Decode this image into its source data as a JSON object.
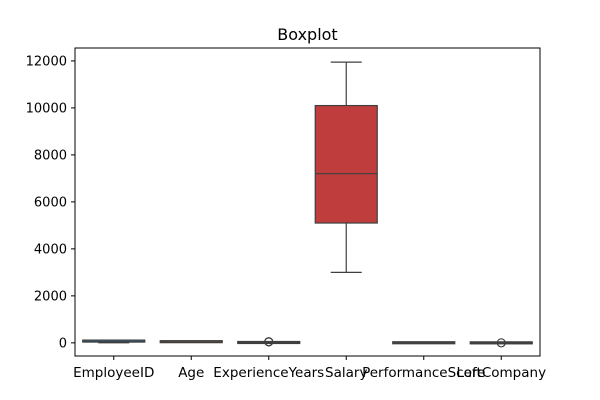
{
  "chart_data": {
    "type": "boxplot",
    "title": "Boxplot",
    "xlabel": "",
    "ylabel": "",
    "ylim": [
      -560,
      12550
    ],
    "yticks": [
      0,
      2000,
      4000,
      6000,
      8000,
      10000,
      12000
    ],
    "grid": false,
    "categories": [
      "EmployeeID",
      "Age",
      "ExperienceYears",
      "Salary",
      "PerformanceScore",
      "LeftCompany"
    ],
    "boxes": [
      {
        "category": "EmployeeID",
        "whisker_low": 1,
        "q1": 25,
        "median": 50,
        "q3": 75,
        "whisker_high": 100,
        "outliers": [],
        "color": "#3274a1"
      },
      {
        "category": "Age",
        "whisker_low": 22,
        "q1": 31,
        "median": 40,
        "q3": 50,
        "whisker_high": 60,
        "outliers": [],
        "color": "#e1812c"
      },
      {
        "category": "ExperienceYears",
        "whisker_low": 0,
        "q1": 4,
        "median": 9,
        "q3": 15,
        "whisker_high": 30,
        "outliers": [
          40,
          48
        ],
        "color": "#3a923a"
      },
      {
        "category": "Salary",
        "whisker_low": 3000,
        "q1": 5100,
        "median": 7200,
        "q3": 10100,
        "whisker_high": 11950,
        "outliers": [],
        "color": "#c03d3e"
      },
      {
        "category": "PerformanceScore",
        "whisker_low": 1,
        "q1": 2,
        "median": 3,
        "q3": 4,
        "whisker_high": 5,
        "outliers": [],
        "color": "#9372b2"
      },
      {
        "category": "LeftCompany",
        "whisker_low": 0,
        "q1": 0,
        "median": 0,
        "q3": 0,
        "whisker_high": 0,
        "outliers": [
          1
        ],
        "color": "#845b53"
      }
    ]
  }
}
